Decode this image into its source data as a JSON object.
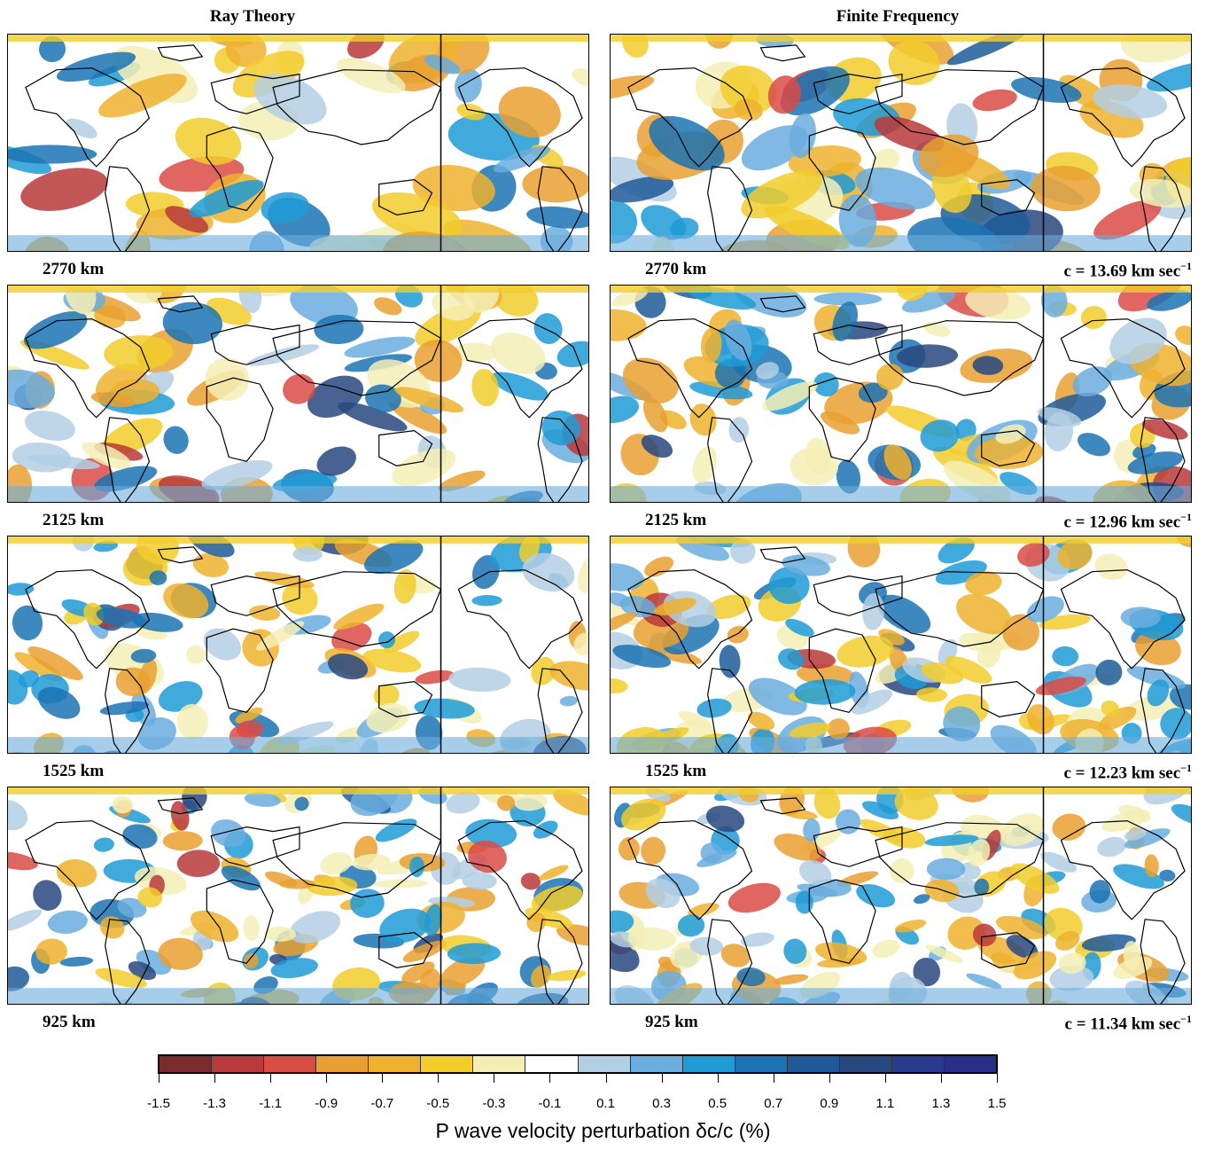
{
  "columns": [
    "Ray Theory",
    "Finite Frequency"
  ],
  "rows": [
    {
      "depth": "2770 km",
      "speed_text": "c = 13.69 km sec",
      "speed_exp": "−1"
    },
    {
      "depth": "2125 km",
      "speed_text": "c = 12.96 km sec",
      "speed_exp": "−1"
    },
    {
      "depth": "1525 km",
      "speed_text": "c = 12.23 km sec",
      "speed_exp": "−1"
    },
    {
      "depth": "925 km",
      "speed_text": "c = 11.34 km sec",
      "speed_exp": "−1"
    }
  ],
  "colorbar": {
    "title": "P wave velocity perturbation δc/c (%)",
    "ticks": [
      "-1.5",
      "-1.3",
      "-1.1",
      "-0.9",
      "-0.7",
      "-0.5",
      "-0.3",
      "-0.1",
      "0.1",
      "0.3",
      "0.5",
      "0.7",
      "0.9",
      "1.1",
      "1.3",
      "1.5"
    ],
    "colors": [
      "#7a2c2c",
      "#b83a3a",
      "#d94b45",
      "#e9a030",
      "#efb22e",
      "#f2cd2c",
      "#f4eeb5",
      "#ffffff",
      "#b3cfe3",
      "#6aadde",
      "#1f9bd6",
      "#1b73b3",
      "#1e5a99",
      "#28487f",
      "#2a3a8c",
      "#2a2f8a"
    ]
  }
}
